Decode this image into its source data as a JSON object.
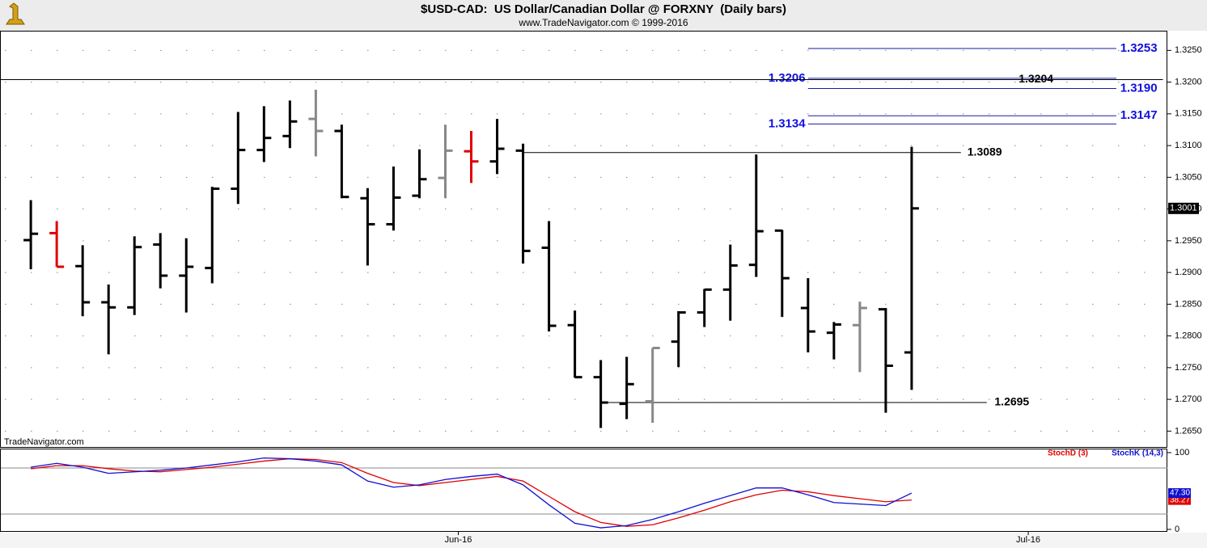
{
  "header": {
    "title": "$USD-CAD:  US Dollar/Canadian Dollar @ FORXNY  (Daily bars)",
    "subtitle": "www.TradeNavigator.com © 1999-2016"
  },
  "watermark": "TradeNavigator.com",
  "chart_data": [
    {
      "type": "ohlc",
      "x": [
        0,
        1,
        2,
        3,
        4,
        5,
        6,
        7,
        8,
        9,
        10,
        11,
        12,
        13,
        14,
        15,
        16,
        17,
        18,
        19,
        20,
        21,
        22,
        23,
        24,
        25,
        26,
        27,
        28,
        29,
        30,
        31,
        32,
        33,
        34
      ],
      "open": [
        1.2951,
        1.2962,
        1.291,
        1.2853,
        1.2845,
        1.2944,
        1.2895,
        1.2907,
        1.3032,
        1.3093,
        1.3115,
        1.3142,
        1.3123,
        1.3017,
        1.2976,
        1.3021,
        1.3049,
        1.3091,
        1.3075,
        1.3092,
        1.2939,
        1.2817,
        1.2735,
        1.2693,
        1.2697,
        1.2791,
        1.2837,
        1.2873,
        1.2912,
        1.2966,
        1.2844,
        1.2805,
        1.2817,
        1.2842,
        1.2774
      ],
      "high": [
        1.3014,
        1.2981,
        1.2943,
        1.2881,
        1.2957,
        1.2962,
        1.2954,
        1.3035,
        1.3153,
        1.3162,
        1.3171,
        1.3188,
        1.3133,
        1.3033,
        1.3067,
        1.3094,
        1.3133,
        1.3123,
        1.3142,
        1.3103,
        1.2981,
        1.284,
        1.2762,
        1.2767,
        1.2781,
        1.2839,
        1.2874,
        1.2944,
        1.3086,
        1.2967,
        1.2891,
        1.2822,
        1.2854,
        1.2844,
        1.3098
      ],
      "low": [
        1.2905,
        1.2909,
        1.2831,
        1.2771,
        1.2833,
        1.2875,
        1.2837,
        1.2883,
        1.3008,
        1.3074,
        1.3096,
        1.3083,
        1.3017,
        1.2911,
        1.2966,
        1.3017,
        1.3017,
        1.3041,
        1.3055,
        1.2914,
        1.2807,
        1.2734,
        1.2655,
        1.2669,
        1.2663,
        1.2751,
        1.2814,
        1.2824,
        1.2893,
        1.283,
        1.2774,
        1.2763,
        1.2743,
        1.2679,
        1.2715
      ],
      "close": [
        1.2961,
        1.2909,
        1.2853,
        1.2845,
        1.294,
        1.2895,
        1.2909,
        1.3032,
        1.3093,
        1.3112,
        1.3138,
        1.3123,
        1.3019,
        1.2976,
        1.3018,
        1.3047,
        1.3092,
        1.3075,
        1.3095,
        1.2934,
        1.2816,
        1.2735,
        1.2695,
        1.2724,
        1.2781,
        1.2837,
        1.2873,
        1.2911,
        1.2965,
        1.2891,
        1.2807,
        1.2818,
        1.2844,
        1.2753,
        1.3001
      ],
      "colors": [
        "#000000",
        "#e00000",
        "#000000",
        "#000000",
        "#000000",
        "#000000",
        "#000000",
        "#000000",
        "#000000",
        "#000000",
        "#000000",
        "#888888",
        "#000000",
        "#000000",
        "#000000",
        "#000000",
        "#888888",
        "#e00000",
        "#000000",
        "#000000",
        "#000000",
        "#000000",
        "#000000",
        "#000000",
        "#888888",
        "#000000",
        "#000000",
        "#000000",
        "#000000",
        "#000000",
        "#000000",
        "#000000",
        "#888888",
        "#000000",
        "#000000"
      ],
      "xlim": [
        -1.19,
        43.87
      ],
      "ylim": [
        1.2625,
        1.3281
      ],
      "yticks": [
        {
          "value": 1.265,
          "label": "1.2650"
        },
        {
          "value": 1.27,
          "label": "1.2700"
        },
        {
          "value": 1.275,
          "label": "1.2750"
        },
        {
          "value": 1.28,
          "label": "1.2800"
        },
        {
          "value": 1.285,
          "label": "1.2850"
        },
        {
          "value": 1.29,
          "label": "1.2900"
        },
        {
          "value": 1.295,
          "label": "1.2950"
        },
        {
          "value": 1.3,
          "label": "1.3000"
        },
        {
          "value": 1.305,
          "label": "1.3050"
        },
        {
          "value": 1.31,
          "label": "1.3100"
        },
        {
          "value": 1.315,
          "label": "1.3150"
        },
        {
          "value": 1.32,
          "label": "1.3200"
        },
        {
          "value": 1.325,
          "label": "1.3250"
        }
      ],
      "grid": true,
      "levels": [
        {
          "value": 1.3253,
          "color": "#1a1aa6",
          "label_color": "#1010e0",
          "from": 30,
          "to": 41.9,
          "label_x": 42.05,
          "anchor": "start"
        },
        {
          "value": 1.3206,
          "color": "#1a1aa6",
          "label_color": "#1010e0",
          "from": 30,
          "to": 41.9,
          "label_x": 29.9,
          "anchor": "end"
        },
        {
          "value": 1.3204,
          "color": "#000000",
          "label_color": "#000000",
          "from": -1.19,
          "to": 43.7,
          "label_x": 38.8,
          "anchor": "middle"
        },
        {
          "value": 1.319,
          "label": "1.3190",
          "color": "#1a1aa6",
          "label_color": "#1010e0",
          "from": 30,
          "to": 41.9,
          "label_x": 42.05,
          "anchor": "start"
        },
        {
          "value": 1.3147,
          "color": "#1a1aa6",
          "label_color": "#1010e0",
          "from": 30,
          "to": 41.9,
          "label_x": 42.05,
          "anchor": "start"
        },
        {
          "value": 1.3134,
          "color": "#1a1aa6",
          "label_color": "#1010e0",
          "from": 30,
          "to": 41.9,
          "label_x": 29.9,
          "anchor": "end"
        },
        {
          "value": 1.3089,
          "color": "#000000",
          "label_color": "#000000",
          "from": 19,
          "to": 35.9,
          "label_x": 36.15,
          "anchor": "start"
        },
        {
          "value": 1.2695,
          "color": "#000000",
          "label_color": "#000000",
          "from": 22,
          "to": 36.9,
          "label_x": 37.2,
          "anchor": "start"
        }
      ]
    },
    {
      "type": "line",
      "x": [
        0,
        1,
        2,
        3,
        4,
        5,
        6,
        7,
        8,
        9,
        10,
        11,
        12,
        13,
        14,
        15,
        16,
        17,
        18,
        19,
        20,
        21,
        22,
        23,
        24,
        25,
        26,
        27,
        28,
        29,
        30,
        31,
        32,
        33,
        34
      ],
      "series": [
        {
          "name": "StochD (3)",
          "color": "#e00000",
          "values": [
            79,
            83,
            83,
            79,
            76,
            75,
            78,
            81,
            85,
            89,
            92,
            91,
            87,
            73,
            61,
            57,
            61,
            65,
            69,
            63,
            43,
            23,
            9,
            4,
            6,
            15,
            25,
            36,
            45,
            51,
            49,
            44,
            40,
            36,
            38.27
          ]
        },
        {
          "name": "StochK (14,3)",
          "color": "#1010d0",
          "values": [
            81,
            86,
            81,
            73,
            75,
            77,
            80,
            84,
            88,
            93,
            92,
            89,
            84,
            63,
            55,
            58,
            65,
            69,
            72,
            58,
            32,
            8,
            2,
            5,
            13,
            23,
            34,
            44,
            54,
            54,
            45,
            35,
            33,
            31,
            47.3
          ],
          "value_labels": [
            null,
            null,
            null,
            null,
            null,
            null,
            null,
            null,
            null,
            null,
            null,
            null,
            null,
            null,
            null,
            null,
            null,
            null,
            null,
            null,
            null,
            null,
            null,
            null,
            null,
            null,
            null,
            null,
            null,
            null,
            null,
            null,
            null,
            null,
            "47.30"
          ]
        }
      ],
      "xlim": [
        -1.19,
        43.87
      ],
      "ylim": [
        -3.2,
        104.2
      ],
      "yticks": [
        0,
        100
      ],
      "hlines": [
        20,
        80
      ],
      "xticks": [
        {
          "value": 16.5,
          "label": "Jun-16"
        },
        {
          "value": 38.5,
          "label": "Jul-16"
        }
      ]
    }
  ]
}
